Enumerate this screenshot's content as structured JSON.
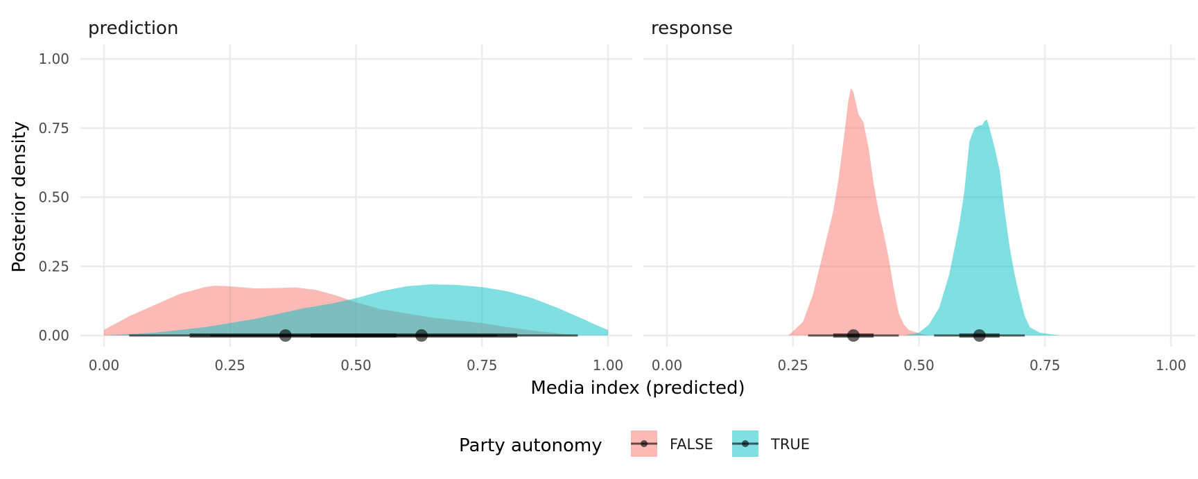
{
  "chart_data": {
    "type": "area",
    "kind": "faceted density with point-interval summaries",
    "xlabel": "Media index (predicted)",
    "ylabel": "Posterior density",
    "xlim": [
      0,
      1
    ],
    "ylim": [
      0,
      1
    ],
    "x_ticks": [
      "0.00",
      "0.25",
      "0.50",
      "0.75",
      "1.00"
    ],
    "y_ticks": [
      "0.00",
      "0.25",
      "0.50",
      "0.75",
      "1.00"
    ],
    "grid": true,
    "legend": {
      "title": "Party autonomy",
      "placement": "bottom",
      "entries": [
        {
          "label": "FALSE",
          "color": "#F8766D"
        },
        {
          "label": "TRUE",
          "color": "#00BFC4"
        }
      ]
    },
    "facets": [
      {
        "title": "prediction",
        "series": [
          {
            "name": "FALSE",
            "color": "#F8766D",
            "density": [
              [
                0.0,
                0.02
              ],
              [
                0.02,
                0.04
              ],
              [
                0.05,
                0.07
              ],
              [
                0.1,
                0.11
              ],
              [
                0.15,
                0.15
              ],
              [
                0.2,
                0.175
              ],
              [
                0.22,
                0.18
              ],
              [
                0.25,
                0.178
              ],
              [
                0.3,
                0.17
              ],
              [
                0.35,
                0.172
              ],
              [
                0.38,
                0.174
              ],
              [
                0.42,
                0.165
              ],
              [
                0.46,
                0.145
              ],
              [
                0.5,
                0.12
              ],
              [
                0.55,
                0.095
              ],
              [
                0.6,
                0.08
              ],
              [
                0.65,
                0.065
              ],
              [
                0.7,
                0.055
              ],
              [
                0.75,
                0.045
              ],
              [
                0.8,
                0.03
              ],
              [
                0.85,
                0.018
              ],
              [
                0.9,
                0.008
              ],
              [
                0.93,
                0.0
              ]
            ],
            "point": 0.36,
            "interval_inner": [
              0.17,
              0.58
            ],
            "interval_outer": [
              0.05,
              0.78
            ]
          },
          {
            "name": "TRUE",
            "color": "#00BFC4",
            "density": [
              [
                0.0,
                0.0
              ],
              [
                0.1,
                0.01
              ],
              [
                0.2,
                0.03
              ],
              [
                0.3,
                0.06
              ],
              [
                0.35,
                0.08
              ],
              [
                0.4,
                0.1
              ],
              [
                0.45,
                0.115
              ],
              [
                0.5,
                0.135
              ],
              [
                0.55,
                0.16
              ],
              [
                0.6,
                0.178
              ],
              [
                0.65,
                0.185
              ],
              [
                0.7,
                0.183
              ],
              [
                0.75,
                0.175
              ],
              [
                0.8,
                0.16
              ],
              [
                0.85,
                0.135
              ],
              [
                0.9,
                0.1
              ],
              [
                0.95,
                0.06
              ],
              [
                0.98,
                0.035
              ],
              [
                1.0,
                0.02
              ]
            ],
            "point": 0.63,
            "interval_inner": [
              0.41,
              0.82
            ],
            "interval_outer": [
              0.21,
              0.94
            ]
          }
        ]
      },
      {
        "title": "response",
        "series": [
          {
            "name": "FALSE",
            "color": "#F8766D",
            "density": [
              [
                0.24,
                0.0
              ],
              [
                0.25,
                0.015
              ],
              [
                0.27,
                0.05
              ],
              [
                0.29,
                0.15
              ],
              [
                0.31,
                0.3
              ],
              [
                0.33,
                0.45
              ],
              [
                0.34,
                0.56
              ],
              [
                0.35,
                0.7
              ],
              [
                0.36,
                0.85
              ],
              [
                0.365,
                0.895
              ],
              [
                0.37,
                0.88
              ],
              [
                0.38,
                0.8
              ],
              [
                0.39,
                0.77
              ],
              [
                0.4,
                0.68
              ],
              [
                0.41,
                0.55
              ],
              [
                0.42,
                0.45
              ],
              [
                0.43,
                0.37
              ],
              [
                0.44,
                0.28
              ],
              [
                0.45,
                0.17
              ],
              [
                0.46,
                0.08
              ],
              [
                0.47,
                0.04
              ],
              [
                0.48,
                0.02
              ],
              [
                0.5,
                0.008
              ],
              [
                0.52,
                0.0
              ]
            ],
            "point": 0.37,
            "interval_inner": [
              0.33,
              0.41
            ],
            "interval_outer": [
              0.28,
              0.46
            ]
          },
          {
            "name": "TRUE",
            "color": "#00BFC4",
            "density": [
              [
                0.47,
                0.0
              ],
              [
                0.5,
                0.01
              ],
              [
                0.52,
                0.04
              ],
              [
                0.54,
                0.1
              ],
              [
                0.56,
                0.22
              ],
              [
                0.58,
                0.4
              ],
              [
                0.59,
                0.52
              ],
              [
                0.6,
                0.7
              ],
              [
                0.61,
                0.75
              ],
              [
                0.62,
                0.76
              ],
              [
                0.625,
                0.76
              ],
              [
                0.63,
                0.775
              ],
              [
                0.635,
                0.78
              ],
              [
                0.64,
                0.75
              ],
              [
                0.65,
                0.68
              ],
              [
                0.66,
                0.6
              ],
              [
                0.67,
                0.45
              ],
              [
                0.68,
                0.32
              ],
              [
                0.69,
                0.22
              ],
              [
                0.7,
                0.14
              ],
              [
                0.71,
                0.07
              ],
              [
                0.72,
                0.03
              ],
              [
                0.74,
                0.01
              ],
              [
                0.78,
                0.0
              ]
            ],
            "point": 0.62,
            "interval_inner": [
              0.58,
              0.66
            ],
            "interval_outer": [
              0.53,
              0.71
            ]
          }
        ]
      }
    ]
  }
}
